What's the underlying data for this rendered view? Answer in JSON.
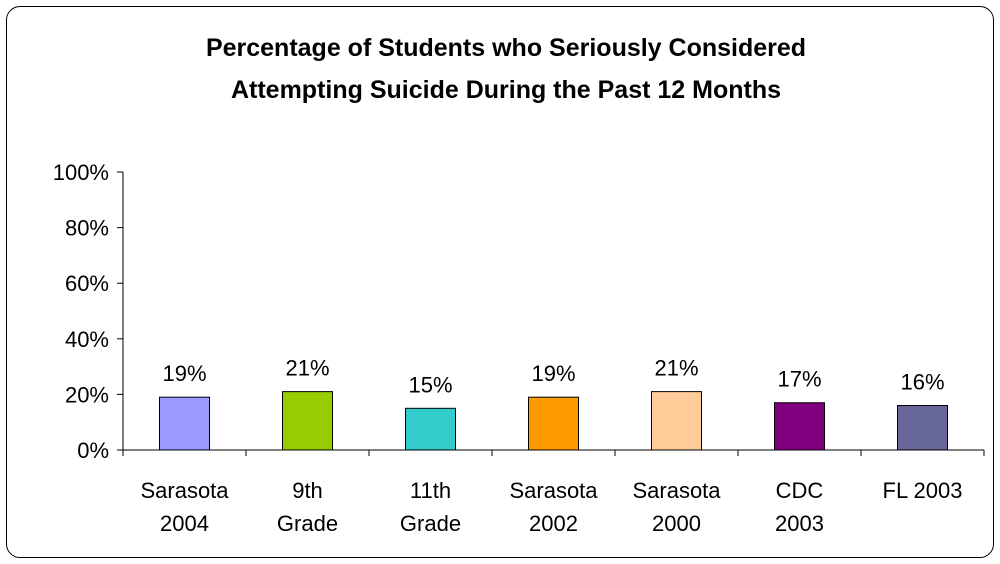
{
  "chart_data": {
    "type": "bar",
    "title": [
      "Percentage of Students who Seriously Considered",
      "Attempting Suicide During the Past 12 Months"
    ],
    "categories": [
      [
        "Sarasota",
        "2004"
      ],
      [
        "9th",
        "Grade"
      ],
      [
        "11th",
        "Grade"
      ],
      [
        "Sarasota",
        "2002"
      ],
      [
        "Sarasota",
        "2000"
      ],
      [
        "CDC",
        "2003"
      ],
      [
        "FL 2003"
      ]
    ],
    "values": [
      19,
      21,
      15,
      19,
      21,
      17,
      16
    ],
    "data_labels": [
      "19%",
      "21%",
      "15%",
      "19%",
      "21%",
      "17%",
      "16%"
    ],
    "colors": [
      "#9999ff",
      "#99cc00",
      "#33cccc",
      "#ff9900",
      "#ffcc99",
      "#800080",
      "#666699"
    ],
    "ylim": [
      0,
      100
    ],
    "yticks": [
      0,
      20,
      40,
      60,
      80,
      100
    ],
    "ytick_labels": [
      "0%",
      "20%",
      "40%",
      "60%",
      "80%",
      "100%"
    ],
    "grid": false,
    "legend": "none"
  }
}
